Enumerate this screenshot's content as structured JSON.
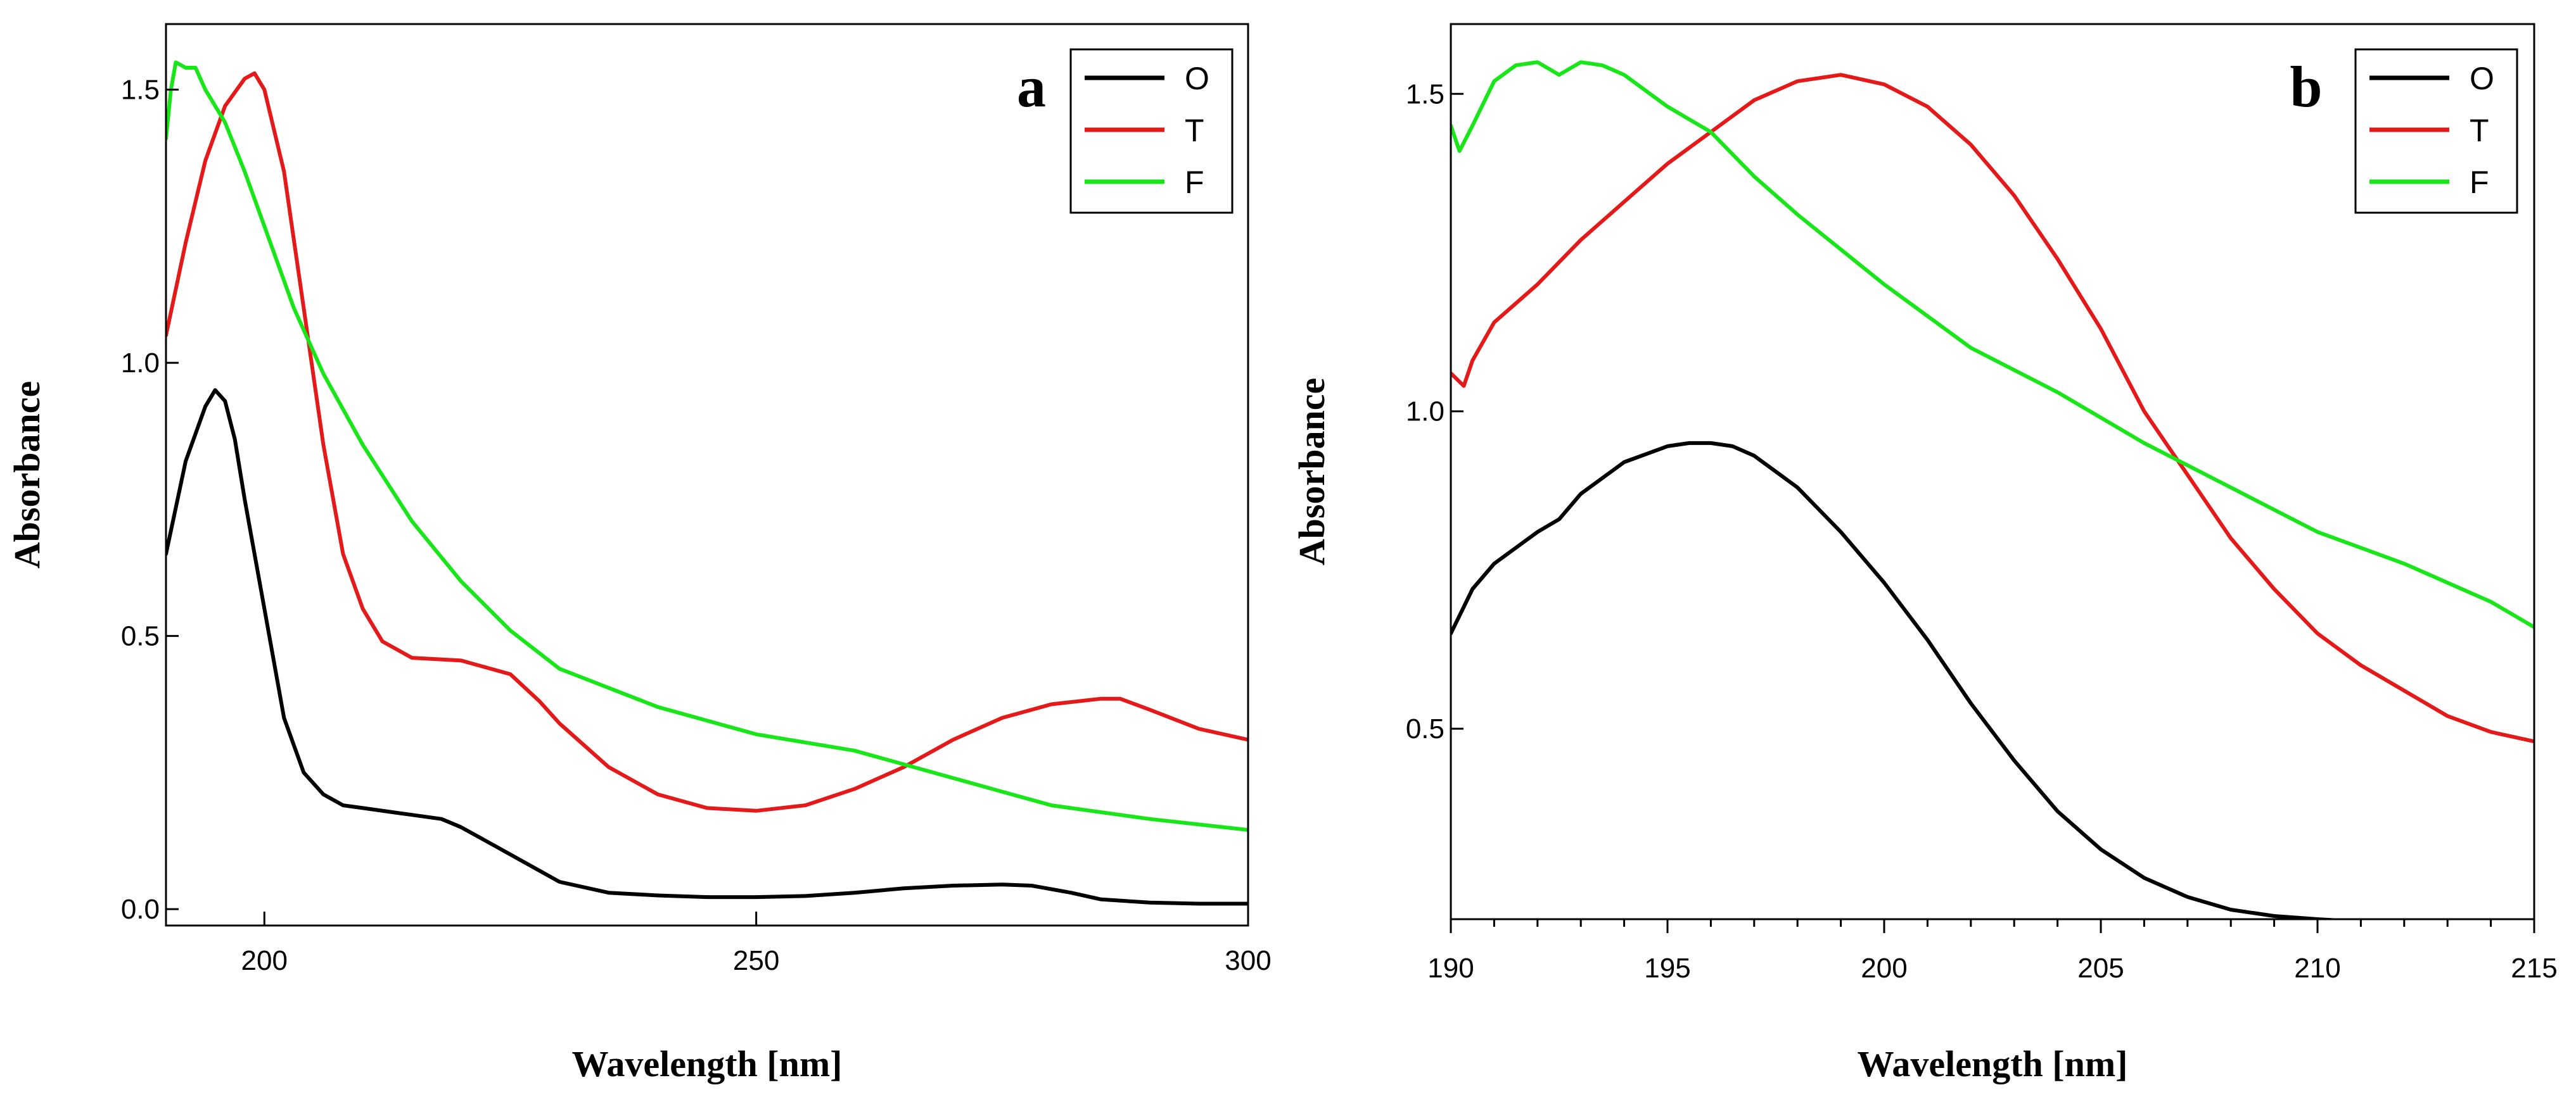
{
  "colors": {
    "O": "#000000",
    "T": "#e41a1a",
    "F": "#19e619"
  },
  "chart_data": [
    {
      "type": "line",
      "panel_label": "a",
      "xlabel": "Wavelength [nm]",
      "ylabel": "Absorbance",
      "xlim": [
        190,
        300
      ],
      "ylim": [
        -0.03,
        1.62
      ],
      "xticks": [
        200,
        250,
        300
      ],
      "xtick_labels": [
        "200",
        "250",
        "300"
      ],
      "yticks": [
        0.0,
        0.5,
        1.0,
        1.5
      ],
      "ytick_labels": [
        "0.0",
        "0.5",
        "1.0",
        "1.5"
      ],
      "legend": [
        "O",
        "T",
        "F"
      ],
      "legend_position": "top-right",
      "series": [
        {
          "name": "O",
          "x": [
            190,
            192,
            194,
            195,
            196,
            197,
            198,
            200,
            202,
            204,
            206,
            208,
            210,
            214,
            218,
            220,
            222,
            225,
            230,
            235,
            240,
            245,
            250,
            255,
            260,
            265,
            270,
            275,
            278,
            282,
            285,
            290,
            295,
            300
          ],
          "y": [
            0.65,
            0.82,
            0.92,
            0.95,
            0.93,
            0.86,
            0.75,
            0.55,
            0.35,
            0.25,
            0.21,
            0.19,
            0.185,
            0.175,
            0.165,
            0.15,
            0.13,
            0.1,
            0.05,
            0.03,
            0.025,
            0.022,
            0.022,
            0.024,
            0.03,
            0.038,
            0.043,
            0.045,
            0.043,
            0.03,
            0.018,
            0.012,
            0.01,
            0.01
          ]
        },
        {
          "name": "T",
          "x": [
            190,
            192,
            194,
            196,
            198,
            199,
            200,
            202,
            204,
            206,
            208,
            210,
            212,
            215,
            220,
            225,
            228,
            230,
            235,
            240,
            245,
            250,
            255,
            260,
            265,
            270,
            275,
            280,
            285,
            287,
            290,
            295,
            300
          ],
          "y": [
            1.05,
            1.22,
            1.37,
            1.47,
            1.52,
            1.53,
            1.5,
            1.35,
            1.1,
            0.85,
            0.65,
            0.55,
            0.49,
            0.46,
            0.455,
            0.43,
            0.38,
            0.34,
            0.26,
            0.21,
            0.185,
            0.18,
            0.19,
            0.22,
            0.26,
            0.31,
            0.35,
            0.375,
            0.385,
            0.385,
            0.365,
            0.33,
            0.31
          ]
        },
        {
          "name": "F",
          "x": [
            190,
            190.5,
            191,
            192,
            193,
            194,
            196,
            198,
            200,
            203,
            206,
            210,
            215,
            220,
            225,
            230,
            240,
            250,
            260,
            265,
            270,
            275,
            280,
            290,
            300
          ],
          "y": [
            1.41,
            1.5,
            1.55,
            1.54,
            1.54,
            1.5,
            1.44,
            1.35,
            1.25,
            1.1,
            0.98,
            0.85,
            0.71,
            0.6,
            0.51,
            0.44,
            0.37,
            0.32,
            0.29,
            0.265,
            0.24,
            0.215,
            0.19,
            0.165,
            0.145
          ]
        }
      ]
    },
    {
      "type": "line",
      "panel_label": "b",
      "xlabel": "Wavelength [nm]",
      "ylabel": "Absorbance",
      "xlim": [
        190,
        215
      ],
      "ylim": [
        0.2,
        1.61
      ],
      "xticks": [
        190,
        195,
        200,
        205,
        210,
        215
      ],
      "xtick_labels": [
        "190",
        "195",
        "200",
        "205",
        "210",
        "215"
      ],
      "yticks": [
        0.5,
        1.0,
        1.5
      ],
      "ytick_labels": [
        "0.5",
        "1.0",
        "1.5"
      ],
      "legend": [
        "O",
        "T",
        "F"
      ],
      "legend_position": "top-right",
      "series": [
        {
          "name": "O",
          "x": [
            190,
            190.5,
            191,
            192,
            192.5,
            193,
            194,
            195,
            195.5,
            196,
            196.5,
            197,
            198,
            199,
            200,
            201,
            202,
            203,
            204,
            205,
            206,
            207,
            208,
            209,
            210,
            210.5
          ],
          "y": [
            0.65,
            0.72,
            0.76,
            0.81,
            0.83,
            0.87,
            0.92,
            0.945,
            0.95,
            0.95,
            0.945,
            0.93,
            0.88,
            0.81,
            0.73,
            0.64,
            0.54,
            0.45,
            0.37,
            0.31,
            0.265,
            0.235,
            0.215,
            0.205,
            0.2,
            0.198
          ]
        },
        {
          "name": "T",
          "x": [
            190,
            190.3,
            190.5,
            191,
            192,
            193,
            194,
            195,
            196,
            197,
            198,
            199,
            200,
            201,
            202,
            203,
            204,
            205,
            206,
            207,
            208,
            209,
            210,
            211,
            212,
            213,
            214,
            215
          ],
          "y": [
            1.06,
            1.04,
            1.08,
            1.14,
            1.2,
            1.27,
            1.33,
            1.39,
            1.44,
            1.49,
            1.52,
            1.53,
            1.515,
            1.48,
            1.42,
            1.34,
            1.24,
            1.13,
            1.0,
            0.9,
            0.8,
            0.72,
            0.65,
            0.6,
            0.56,
            0.52,
            0.495,
            0.48
          ]
        },
        {
          "name": "F",
          "x": [
            190,
            190.2,
            190.5,
            191,
            191.5,
            192,
            192.5,
            193,
            193.5,
            194,
            195,
            196,
            197,
            198,
            200,
            202,
            204,
            206,
            208,
            210,
            212,
            214,
            215
          ],
          "y": [
            1.45,
            1.41,
            1.45,
            1.52,
            1.545,
            1.55,
            1.53,
            1.55,
            1.545,
            1.53,
            1.48,
            1.44,
            1.37,
            1.31,
            1.2,
            1.1,
            1.03,
            0.95,
            0.88,
            0.81,
            0.76,
            0.7,
            0.66
          ]
        }
      ]
    }
  ]
}
